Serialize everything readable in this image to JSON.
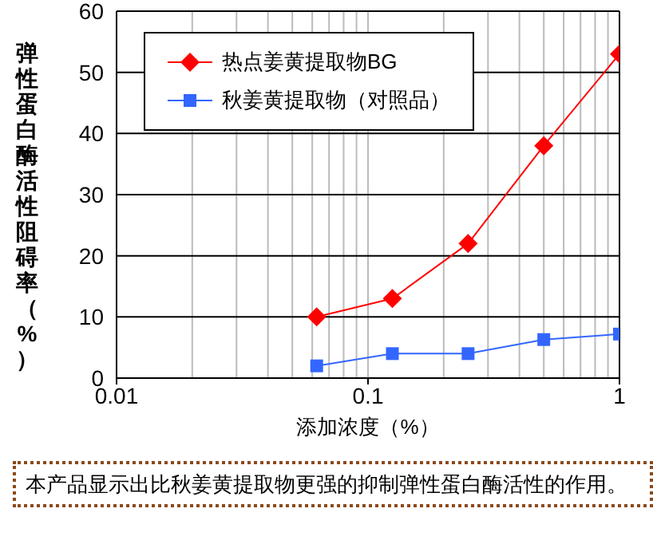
{
  "chart_data": {
    "type": "line",
    "xlabel": "添加浓度（%）",
    "ylabel": "弹性蛋白酶活性阻碍率（%）",
    "log": "x",
    "xlim": [
      0.01,
      1
    ],
    "xticks": [
      0.01,
      0.1,
      1
    ],
    "ylim": [
      0,
      60
    ],
    "yticks": [
      0,
      10,
      20,
      30,
      40,
      50,
      60
    ],
    "grid": true,
    "legend": "top left",
    "x": [
      0.0625,
      0.125,
      0.25,
      0.5,
      1
    ],
    "series": [
      {
        "name": "热点姜黄提取物BG",
        "color": "#ff0000",
        "marker": "diamond",
        "values": [
          10,
          13,
          22,
          38,
          53
        ]
      },
      {
        "name": "秋姜黄提取物（对照品）",
        "color": "#3366ff",
        "marker": "square",
        "values": [
          2,
          4,
          4,
          6.3,
          7.2
        ]
      }
    ],
    "annotations": [
      "本产品显示出比秋姜黄提取物更强的抑制弹性蛋白酶活性的作用。"
    ]
  }
}
